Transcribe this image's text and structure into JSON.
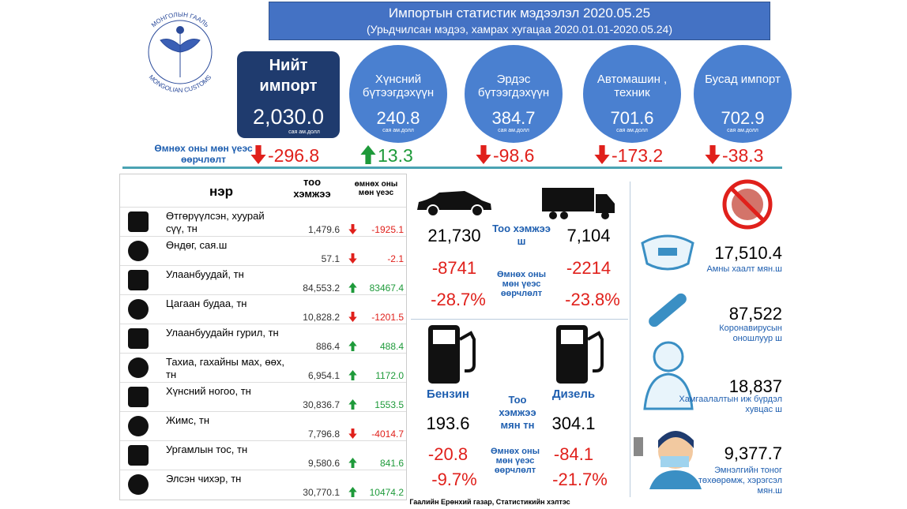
{
  "header": {
    "title": "Импортын статистик мэдээлэл 2020.05.25",
    "subtitle": "(Урьдчилсан мэдээ, хамрах хугацаа 2020.01.01-2020.05.24)"
  },
  "logo": {
    "top": "МОНГОЛЫН ГААЛЬ",
    "bottom": "MONGOLIAN CUSTOMS"
  },
  "summary": {
    "change_label": "Өмнөх оны мөн үеэс өөрчлөлт",
    "items": [
      {
        "label": "Нийт импорт",
        "value": "2,030.0",
        "unit": "сая ам.долл",
        "change": "-296.8"
      },
      {
        "label": "Хүнсний бүтээгдэхүүн",
        "value": "240.8",
        "unit": "сая ам.долл",
        "change": "13.3"
      },
      {
        "label": "Эрдэс бүтээгдэхүүн",
        "value": "384.7",
        "unit": "сая ам.долл",
        "change": "-98.6"
      },
      {
        "label": "Автомашин , техник",
        "value": "701.6",
        "unit": "сая ам.долл",
        "change": "-173.2"
      },
      {
        "label": "Бусад импорт",
        "value": "702.9",
        "unit": "сая ам.долл",
        "change": "-38.3"
      }
    ]
  },
  "table": {
    "headers": [
      "нэр",
      "тоо хэмжээ",
      "өмнөх оны мөн үеэс"
    ],
    "rows": [
      [
        "Өтгөрүүлсэн, хуурай сүү, тн",
        "1,479.6",
        "-1925.1"
      ],
      [
        "Өндөг, сая.ш",
        "57.1",
        "-2.1"
      ],
      [
        "Улаанбуудай, тн",
        "84,553.2",
        "83467.4"
      ],
      [
        "Цагаан будаа, тн",
        "10,828.2",
        "-1201.5"
      ],
      [
        "Улаанбуудайн гурил, тн",
        "886.4",
        "488.4"
      ],
      [
        "Тахиа, гахайны мах, өөх, тн",
        "6,954.1",
        "1172.0"
      ],
      [
        "Хүнсний ногоо, тн",
        "30,836.7",
        "1553.5"
      ],
      [
        "Жимс, тн",
        "7,796.8",
        "-4014.7"
      ],
      [
        "Ургамлын тос, тн",
        "9,580.6",
        "841.6"
      ],
      [
        "Элсэн чихэр, тн",
        "30,770.1",
        "10474.2"
      ]
    ]
  },
  "vehicles": {
    "qty_label": "Тоо хэмжээ ш",
    "change_label": "Өмнөх оны мөн үеэс өөрчлөлт",
    "items": [
      {
        "qty": "21,730",
        "change": "-8741",
        "pct": "-28.7%"
      },
      {
        "qty": "7,104",
        "change": "-2214",
        "pct": "-23.8%"
      }
    ]
  },
  "fuel": {
    "qty_label": "Тоо хэмжээ мян тн",
    "change_label": "Өмнөх оны мөн үеэс өөрчлөлт",
    "items": [
      {
        "name": "Бензин",
        "qty": "193.6",
        "change": "-20.8",
        "pct": "-9.7%"
      },
      {
        "name": "Дизель",
        "qty": "304.1",
        "change": "-84.1",
        "pct": "-21.7%"
      }
    ]
  },
  "medical": {
    "items": [
      {
        "value": "17,510.4",
        "label": "Амны хаалт мян.ш"
      },
      {
        "value": "87,522",
        "label": "Коронавирусын оношлуур ш"
      },
      {
        "value": "18,837",
        "label": "Хамгаалалтын иж бүрдэл хувцас ш"
      },
      {
        "value": "9,377.7",
        "label": "Эмнэлгийн тоног төхөөрөмж, хэрэгсэл мян.ш"
      }
    ]
  },
  "footer": "Гаалийн Ерөнхий газар, Статистикийн хэлтэс"
}
